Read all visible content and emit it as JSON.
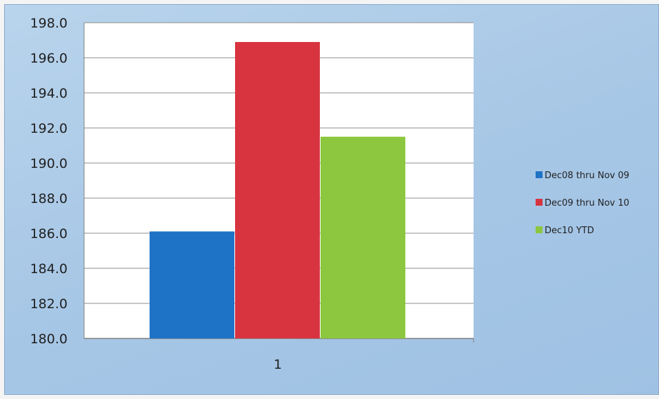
{
  "chart_data": {
    "type": "bar",
    "categories": [
      "1"
    ],
    "series": [
      {
        "name": "Dec08 thru Nov 09",
        "values": [
          186.1
        ],
        "color": "#1e73c6"
      },
      {
        "name": "Dec09 thru Nov 10",
        "values": [
          196.9
        ],
        "color": "#d8343f"
      },
      {
        "name": "Dec10 YTD",
        "values": [
          191.5
        ],
        "color": "#8cc73f"
      }
    ],
    "title": "",
    "xlabel": "",
    "ylabel": "",
    "ylim": [
      180,
      198
    ],
    "yticks": [
      "180.0",
      "182.0",
      "184.0",
      "186.0",
      "188.0",
      "190.0",
      "192.0",
      "194.0",
      "196.0",
      "198.0"
    ],
    "grid": true,
    "legend_position": "right",
    "colors": {
      "plot_background": "#ffffff",
      "frame_background": "#a9c8e6",
      "gridline": "#8c8c8c"
    }
  }
}
